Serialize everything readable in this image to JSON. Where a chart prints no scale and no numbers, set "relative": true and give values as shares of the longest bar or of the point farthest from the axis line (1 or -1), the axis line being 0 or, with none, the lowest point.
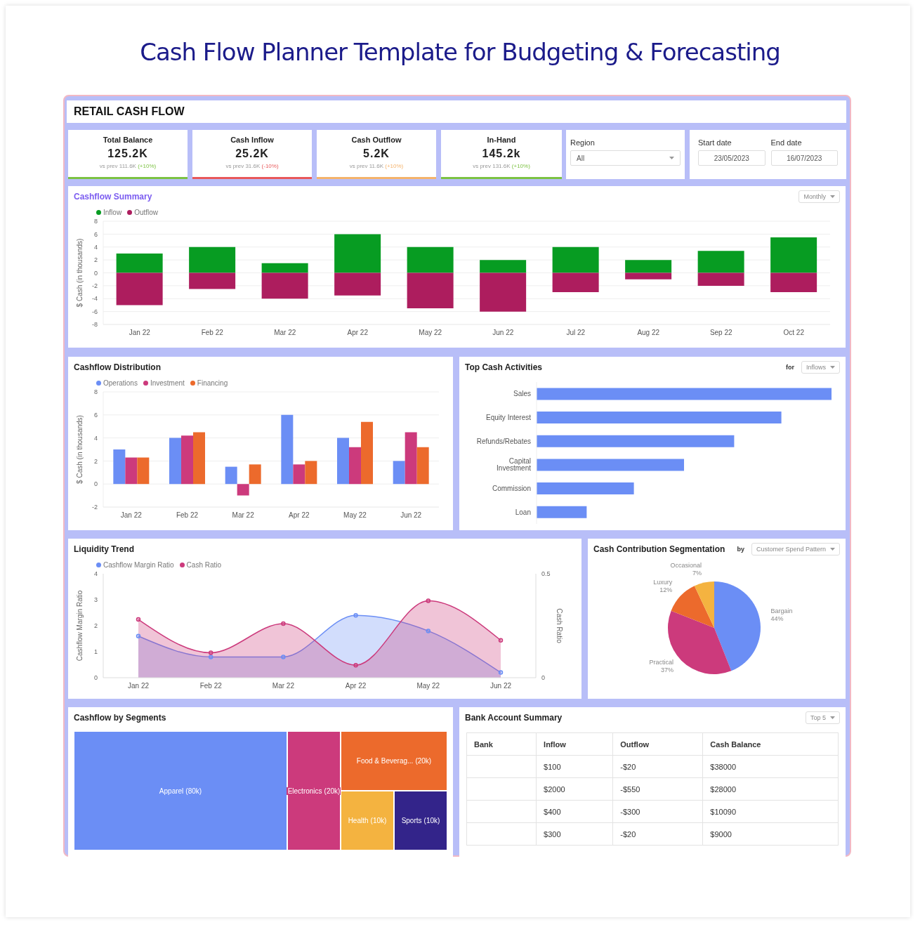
{
  "chart_data": [
    {
      "type": "other",
      "title": "Cash Flow Planner Template for Budgeting & Forecasting",
      "subtitle": "RETAIL CASH FLOW",
      "categories": [
        "Total Balance",
        "Cash Inflow",
        "Cash Outflow",
        "In-Hand"
      ],
      "value_labels": [
        "125.2K",
        "25.2K",
        "5.2K",
        "145.2k"
      ],
      "annotations": [
        "vs prev 111.6K",
        "(+10%)",
        "vs prev 31.6K",
        "(-10%)",
        "vs prev 11.6K",
        "(+10%)",
        "vs prev 131.6K",
        "(+10%)",
        "Region",
        "All",
        "Start date",
        "End date",
        "23/05/2023",
        "16/07/2023"
      ]
    },
    {
      "type": "bar",
      "title": "Cashflow Summary",
      "ylabel": "$ Cash (in thousands)",
      "categories": [
        "Jan 22",
        "Feb 22",
        "Mar 22",
        "Apr 22",
        "May 22",
        "Jun 22",
        "Jul 22",
        "Aug 22",
        "Sep 22",
        "Oct 22"
      ],
      "series": [
        {
          "name": "Inflow",
          "color": "#079c22",
          "values": [
            3,
            4,
            1.5,
            6,
            4,
            2,
            4,
            2,
            3.4,
            5.5
          ]
        },
        {
          "name": "Outflow",
          "color": "#ad1d5e",
          "values": [
            -5,
            -2.5,
            -4,
            -3.5,
            -5.5,
            -6,
            -3,
            -1,
            -2,
            -3
          ]
        }
      ],
      "stacked": true,
      "ylim": [
        -8,
        8
      ],
      "yticks": [
        -8,
        -6,
        -4,
        -2,
        0,
        2,
        4,
        6,
        8
      ],
      "grid": "y",
      "legend": "top left",
      "annotations": [
        "Monthly"
      ]
    },
    {
      "type": "bar",
      "title": "Cashflow Distribution",
      "ylabel": "$ Cash (in thousands)",
      "categories": [
        "Jan 22",
        "Feb 22",
        "Mar 22",
        "Apr 22",
        "May 22",
        "Jun 22"
      ],
      "series": [
        {
          "name": "Operations",
          "color": "#6b8ef5",
          "values": [
            3,
            4,
            1.5,
            6,
            4,
            2
          ]
        },
        {
          "name": "Investment",
          "color": "#cc3a7c",
          "values": [
            2.3,
            4.2,
            -1,
            1.7,
            3.2,
            4.5
          ]
        },
        {
          "name": "Financing",
          "color": "#ec6a2c",
          "values": [
            2.3,
            4.5,
            1.7,
            2,
            5.4,
            3.2
          ]
        }
      ],
      "ylim": [
        -2,
        8
      ],
      "yticks": [
        -2,
        0,
        2,
        4,
        6,
        8
      ],
      "grid": "y",
      "legend": "top left"
    },
    {
      "type": "bar",
      "title": "Top Cash Activities",
      "orientation": "horizontal",
      "relative": true,
      "categories": [
        "Sales",
        "Equity Interest",
        "Refunds/Rebates",
        "Capital Investment",
        "Commission",
        "Loan"
      ],
      "values": [
        1,
        0.83,
        0.67,
        0.5,
        0.33,
        0.17
      ],
      "color": "#6b8ef5",
      "annotations": [
        "for",
        "Inflows"
      ]
    },
    {
      "type": "area",
      "title": "Liquidity Trend",
      "ylabel": "Cashflow Margin Ratio",
      "y2label": "Cash Ratio",
      "categories": [
        "Jan 22",
        "Feb 22",
        "Mar 22",
        "Apr 22",
        "May 22",
        "Jun 22"
      ],
      "series": [
        {
          "name": "Cashflow Margin Ratio",
          "color": "#6b8ef5",
          "values": [
            1.6,
            0.8,
            0.8,
            2.4,
            1.8,
            0.2
          ]
        },
        {
          "name": "Cash Ratio",
          "color": "#cc3a7c",
          "axis": "y2",
          "values": [
            0.28,
            0.12,
            0.26,
            0.06,
            0.37,
            0.18
          ]
        }
      ],
      "ylim": [
        0,
        4
      ],
      "yticks": [
        0,
        1,
        2,
        3,
        4
      ],
      "y2lim": [
        0,
        0.5
      ],
      "y2ticks": [
        0,
        0.5
      ],
      "marker": "circle",
      "legend": "top left"
    },
    {
      "type": "pie",
      "title": "Cash Contribution Segmentation",
      "categories": [
        "Bargain",
        "Practical",
        "Luxury",
        "Occasional"
      ],
      "values": [
        44,
        37,
        12,
        7
      ],
      "value_labels": [
        "44%",
        "37%",
        "12%",
        "7%"
      ],
      "colors": [
        "#6b8ef5",
        "#cc3a7c",
        "#ec6a2c",
        "#f4b340"
      ],
      "annotations": [
        "by",
        "Customer Spend Pattern"
      ]
    },
    {
      "type": "other",
      "title": "Cashflow by Segments",
      "categories": [
        "Apparel",
        "Electronics",
        "Food & Beverag...",
        "Health",
        "Sports"
      ],
      "values": [
        80,
        20,
        20,
        10,
        10
      ],
      "value_labels": [
        "(80k)",
        "(20k)",
        "(20k)",
        "(10k)",
        "(10k)"
      ],
      "colors": [
        "#6b8ef5",
        "#cc3a7c",
        "#ec6a2c",
        "#f4b340",
        "#33248a"
      ]
    },
    {
      "type": "other",
      "title": "Bank Account Summary",
      "annotations": [
        "Top 5"
      ],
      "categories": [
        "Bank",
        "Inflow",
        "Outflow",
        "Cash Balance"
      ],
      "cell_labels": [
        [
          null,
          "$100",
          "-$20",
          "$38000"
        ],
        [
          null,
          "$2000",
          "-$550",
          "$28000"
        ],
        [
          null,
          "$400",
          "-$300",
          "$10090"
        ],
        [
          null,
          "$300",
          "-$20",
          "$9000"
        ]
      ]
    }
  ]
}
